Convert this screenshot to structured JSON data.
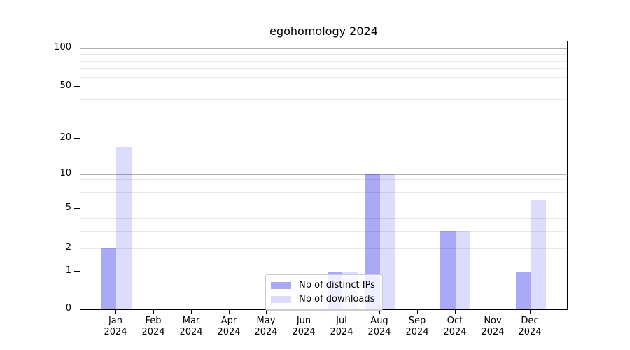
{
  "chart_data": {
    "type": "bar",
    "title": "egohomology 2024",
    "x_categories_months": [
      "Jan",
      "Feb",
      "Mar",
      "Apr",
      "May",
      "Jun",
      "Jul",
      "Aug",
      "Sep",
      "Oct",
      "Nov",
      "Dec"
    ],
    "x_year_label": "2024",
    "series": [
      {
        "name": "Nb of distinct IPs",
        "legend_color": "#a9a9f1",
        "bar_color": "rgba(10,10,235,0.35)",
        "values": [
          2,
          0,
          0,
          0,
          0,
          0,
          1,
          10,
          0,
          3,
          0,
          1
        ]
      },
      {
        "name": "Nb of downloads",
        "legend_color": "#dcdcf8",
        "bar_color": "rgba(10,10,235,0.14)",
        "values": [
          17,
          0,
          0,
          0,
          0,
          0,
          1,
          10,
          0,
          3,
          0,
          6
        ]
      }
    ],
    "yscale": "symlog",
    "ylim": [
      0,
      115
    ],
    "y_tick_labels": [
      0,
      1,
      2,
      5,
      10,
      20,
      50,
      100
    ],
    "y_major_gridlines": [
      1,
      10,
      100
    ],
    "y_minor_gridlines": [
      2,
      3,
      4,
      5,
      6,
      7,
      8,
      9,
      20,
      30,
      40,
      50,
      60,
      70,
      80,
      90
    ],
    "grid": true,
    "legend_position": "lower-center-inside",
    "colors": {
      "major_grid": "#b0b0b0",
      "minor_grid": "#e8e8e8",
      "axis": "#000000",
      "text": "#000000",
      "legend_border": "#cccccc"
    }
  }
}
